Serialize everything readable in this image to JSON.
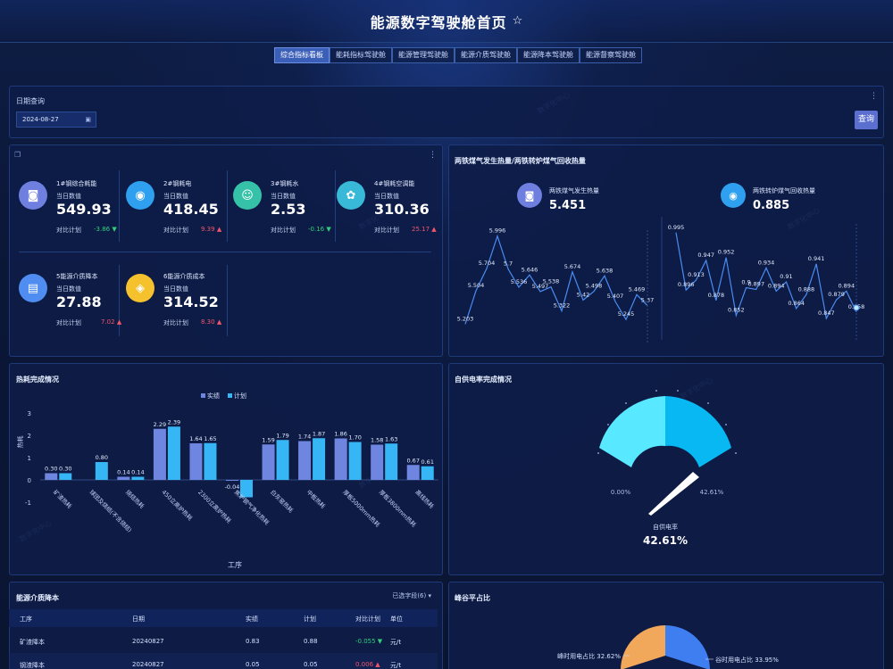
{
  "header": {
    "title": "能源数字驾驶舱首页",
    "star_icon": "☆"
  },
  "tabs": [
    {
      "label": "综合指标看板",
      "active": true
    },
    {
      "label": "能耗指标驾驶舱",
      "active": false
    },
    {
      "label": "能源管理驾驶舱",
      "active": false
    },
    {
      "label": "能源介质驾驶舱",
      "active": false
    },
    {
      "label": "能源降本驾驶舱",
      "active": false
    },
    {
      "label": "能源督察驾驶舱",
      "active": false
    }
  ],
  "date_query": {
    "label": "日期查询",
    "value": "2024-08-27",
    "button": "查询"
  },
  "kpis": [
    {
      "name": "1#钢综合耗能",
      "day_label": "当日数值",
      "value": "549.93",
      "plan_label": "对比计划",
      "delta": "-3.86",
      "dir": "down",
      "color": "#6e7fe0",
      "icon": "wallet-icon"
    },
    {
      "name": "2#钢耗电",
      "day_label": "当日数值",
      "value": "418.45",
      "plan_label": "对比计划",
      "delta": "9.39",
      "dir": "up",
      "color": "#2fa0f0",
      "icon": "eye-icon"
    },
    {
      "name": "3#钢耗水",
      "day_label": "当日数值",
      "value": "2.53",
      "plan_label": "对比计划",
      "delta": "-0.16",
      "dir": "down",
      "color": "#35c2a8",
      "icon": "users-icon"
    },
    {
      "name": "4#钢耗空调能",
      "day_label": "当日数值",
      "value": "310.36",
      "plan_label": "对比计划",
      "delta": "25.17",
      "dir": "up",
      "color": "#39b9d8",
      "icon": "paw-icon"
    },
    {
      "name": "5能源介质降本",
      "day_label": "当日数值",
      "value": "27.88",
      "plan_label": "对比计划",
      "delta": "7.02",
      "dir": "up",
      "color": "#4f8ef0",
      "icon": "clipboard-icon"
    },
    {
      "name": "6能源介质成本",
      "day_label": "当日数值",
      "value": "314.52",
      "plan_label": "对比计划",
      "delta": "8.30",
      "dir": "up",
      "color": "#f5c22e",
      "icon": "cube-icon"
    }
  ],
  "gas_panel": {
    "title": "两铁煤气发生热量/两铁转炉煤气回收热量",
    "left": {
      "name": "两铁煤气发生热量",
      "value": "5.451",
      "color": "#6e7fe0",
      "icon": "wallet-icon"
    },
    "right": {
      "name": "两铁转炉煤气回收热量",
      "value": "0.885",
      "color": "#2fa0f0",
      "icon": "eye-icon"
    },
    "left_series": [
      5.203,
      5.504,
      5.704,
      5.996,
      5.7,
      5.536,
      5.646,
      5.497,
      5.538,
      5.322,
      5.674,
      5.42,
      5.498,
      5.638,
      5.407,
      5.245,
      5.469,
      5.37
    ],
    "right_series": [
      0.995,
      0.896,
      0.913,
      0.947,
      0.878,
      0.952,
      0.852,
      0.9,
      0.897,
      0.934,
      0.894,
      0.91,
      0.864,
      0.888,
      0.941,
      0.847,
      0.879,
      0.894,
      0.858
    ]
  },
  "heat_panel": {
    "title": "热耗完成情况"
  },
  "self_power_panel": {
    "title": "自供电率完成情况",
    "min_label": "0.00%",
    "max_label": "42.61%",
    "sub_label": "自供电率",
    "value_label": "42.61%"
  },
  "cost_table": {
    "title": "能源介质降本",
    "select_label": "已选字段(6)",
    "columns": [
      "工序",
      "日期",
      "实绩",
      "计划",
      "对比计划",
      "单位"
    ],
    "rows": [
      {
        "proc": "矿渣降本",
        "date": "20240827",
        "actual": "0.83",
        "plan": "0.88",
        "delta": "-0.055",
        "dir": "down",
        "unit": "元/t"
      },
      {
        "proc": "钢渣降本",
        "date": "20240827",
        "actual": "0.05",
        "plan": "0.05",
        "delta": "0.006",
        "dir": "up",
        "unit": "元/t"
      }
    ]
  },
  "peak_panel": {
    "title": "峰谷平占比",
    "label_left": "峰时用电占比 32.62%",
    "label_right": "谷时用电占比 33.95%"
  },
  "chart_data": [
    {
      "type": "bar",
      "title": "热耗完成情况",
      "xlabel": "工序",
      "ylabel": "热耗",
      "ylim": [
        -1,
        3
      ],
      "legend": "top",
      "categories": [
        "矿渣热耗",
        "球团及烧结(不含烧结)",
        "烧结热耗",
        "450立高炉热耗",
        "2300立高炉热耗",
        "焦炉钢气净化热耗",
        "白灰窑热耗",
        "中板热耗",
        "厚板5000mm热耗",
        "厚板3800mm热耗",
        "高线热耗"
      ],
      "series": [
        {
          "name": "实绩",
          "color": "#6f86e0",
          "values": [
            0.3,
            null,
            0.14,
            2.29,
            1.64,
            -0.04,
            1.59,
            1.74,
            1.86,
            1.58,
            0.67
          ]
        },
        {
          "name": "计划",
          "color": "#36b6f5",
          "values": [
            0.3,
            0.8,
            0.14,
            2.39,
            1.65,
            -0.78,
            1.79,
            1.87,
            1.7,
            1.63,
            0.61
          ]
        }
      ],
      "bar_labels": {
        "actual": [
          "0.30",
          "",
          "0.14",
          "2.29",
          "1.64",
          "-0.04",
          "1.59",
          "1.74",
          "1.86",
          "1.58",
          "0.67"
        ],
        "plan": [
          "0.30",
          "0.80",
          "0.14",
          "2.39",
          "1.65",
          "",
          "1.79",
          "1.87",
          "1.70",
          "1.63",
          "0.61"
        ]
      },
      "yticks": [
        "-1",
        "0",
        "1",
        "2",
        "3"
      ]
    },
    {
      "type": "line",
      "title": "两铁煤气发生热量",
      "series": [
        {
          "values": [
            5.203,
            5.504,
            5.704,
            5.996,
            5.7,
            5.536,
            5.646,
            5.497,
            5.538,
            5.322,
            5.674,
            5.42,
            5.498,
            5.638,
            5.407,
            5.245,
            5.469,
            5.37
          ]
        }
      ]
    },
    {
      "type": "line",
      "title": "两铁转炉煤气回收热量",
      "series": [
        {
          "values": [
            0.995,
            0.896,
            0.913,
            0.947,
            0.878,
            0.952,
            0.852,
            0.9,
            0.897,
            0.934,
            0.894,
            0.91,
            0.864,
            0.888,
            0.941,
            0.847,
            0.879,
            0.894,
            0.858
          ]
        }
      ]
    },
    {
      "type": "pie",
      "title": "峰谷平占比",
      "slices": [
        {
          "name": "峰时用电占比",
          "value": 32.62,
          "color": "#f2a85a"
        },
        {
          "name": "谷时用电占比",
          "value": 33.95,
          "color": "#3f7ef0"
        }
      ]
    }
  ]
}
